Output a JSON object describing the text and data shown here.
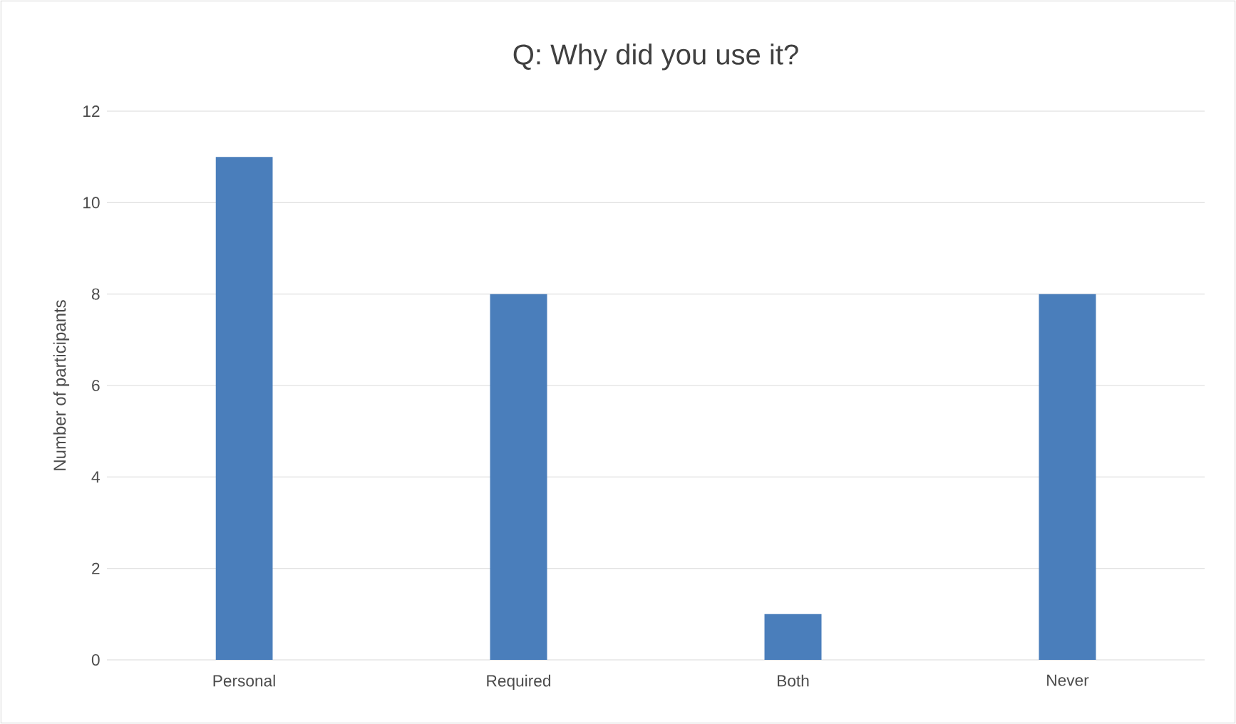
{
  "chart_data": {
    "type": "bar",
    "title": "Q: Why did you use it?",
    "ylabel": "Number of participants",
    "categories": [
      "Personal",
      "Required",
      "Both",
      "Never"
    ],
    "values": [
      11,
      8,
      1,
      8
    ],
    "color": "#4a7ebb",
    "ylim": [
      0,
      12
    ],
    "yticks": [
      0,
      2,
      4,
      6,
      8,
      10,
      12
    ],
    "grid": "y"
  }
}
